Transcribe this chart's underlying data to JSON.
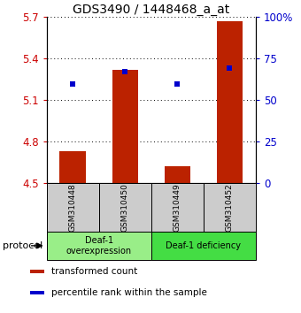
{
  "title": "GDS3490 / 1448468_a_at",
  "samples": [
    "GSM310448",
    "GSM310450",
    "GSM310449",
    "GSM310452"
  ],
  "bar_values": [
    4.73,
    5.32,
    4.62,
    5.67
  ],
  "bar_bottom": 4.5,
  "bar_color": "#bb2200",
  "percentile_values": [
    5.22,
    5.305,
    5.215,
    5.33
  ],
  "percentile_color": "#0000cc",
  "ylim_left": [
    4.5,
    5.7
  ],
  "ylim_right": [
    0,
    100
  ],
  "yticks_left": [
    4.5,
    4.8,
    5.1,
    5.4,
    5.7
  ],
  "yticks_right": [
    0,
    25,
    50,
    75,
    100
  ],
  "ytick_labels_left": [
    "4.5",
    "4.8",
    "5.1",
    "5.4",
    "5.7"
  ],
  "ytick_labels_right": [
    "0",
    "25",
    "50",
    "75",
    "100%"
  ],
  "left_tick_color": "#cc0000",
  "right_tick_color": "#0000cc",
  "groups": [
    {
      "label": "Deaf-1\noverexpression",
      "color": "#99ee88"
    },
    {
      "label": "Deaf-1 deficiency",
      "color": "#44dd44"
    }
  ],
  "protocol_label": "protocol",
  "legend_items": [
    {
      "color": "#bb2200",
      "label": "transformed count"
    },
    {
      "color": "#0000cc",
      "label": "percentile rank within the sample"
    }
  ],
  "sample_box_color": "#cccccc",
  "bar_width": 0.5,
  "marker_size": 5
}
